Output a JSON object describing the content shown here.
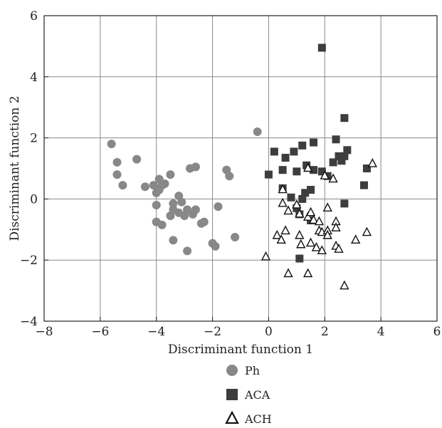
{
  "chart_data": {
    "type": "scatter",
    "xlabel": "Discriminant function 1",
    "ylabel": "Discriminant function 2",
    "xlim": [
      -8,
      6
    ],
    "ylim": [
      -4,
      6
    ],
    "xticks": [
      -8,
      -6,
      -4,
      -2,
      0,
      2,
      4,
      6
    ],
    "yticks": [
      -4,
      -2,
      0,
      2,
      4,
      6
    ],
    "xtick_labels": [
      "−8",
      "−6",
      "−4",
      "−2",
      "0",
      "2",
      "4",
      "6"
    ],
    "ytick_labels": [
      "−4",
      "−2",
      "0",
      "2",
      "4",
      "6"
    ],
    "grid": true,
    "legend_position": "bottom",
    "series": [
      {
        "name": "Ph",
        "marker": "circle",
        "color": "#888888",
        "points": [
          [
            -5.6,
            1.8
          ],
          [
            -5.4,
            1.2
          ],
          [
            -5.4,
            0.8
          ],
          [
            -5.2,
            0.45
          ],
          [
            -4.7,
            1.3
          ],
          [
            -4.4,
            0.4
          ],
          [
            -4.1,
            0.45
          ],
          [
            -4.0,
            0.2
          ],
          [
            -3.9,
            0.65
          ],
          [
            -3.9,
            0.3
          ],
          [
            -3.8,
            0.45
          ],
          [
            -3.7,
            0.5
          ],
          [
            -3.5,
            0.8
          ],
          [
            -4.0,
            -0.2
          ],
          [
            -4.0,
            -0.75
          ],
          [
            -3.8,
            -0.85
          ],
          [
            -3.5,
            -0.55
          ],
          [
            -3.4,
            -0.35
          ],
          [
            -3.4,
            -0.15
          ],
          [
            -3.2,
            0.1
          ],
          [
            -3.1,
            -0.1
          ],
          [
            -3.2,
            -0.45
          ],
          [
            -3.0,
            -0.55
          ],
          [
            -2.9,
            -0.35
          ],
          [
            -2.8,
            1.0
          ],
          [
            -2.6,
            1.05
          ],
          [
            -2.7,
            -0.5
          ],
          [
            -2.6,
            -0.35
          ],
          [
            -2.4,
            -0.8
          ],
          [
            -2.3,
            -0.75
          ],
          [
            -1.8,
            -0.25
          ],
          [
            -2.0,
            -1.45
          ],
          [
            -1.9,
            -1.55
          ],
          [
            -1.5,
            0.95
          ],
          [
            -1.4,
            0.75
          ],
          [
            -1.2,
            -1.25
          ],
          [
            -3.4,
            -1.35
          ],
          [
            -2.9,
            -1.7
          ],
          [
            -0.4,
            2.2
          ]
        ]
      },
      {
        "name": "ACA",
        "marker": "square",
        "color": "#3d3d3d",
        "points": [
          [
            1.9,
            4.95
          ],
          [
            2.7,
            2.65
          ],
          [
            2.4,
            1.95
          ],
          [
            1.6,
            1.85
          ],
          [
            2.8,
            1.6
          ],
          [
            0.2,
            1.55
          ],
          [
            0.9,
            1.55
          ],
          [
            1.2,
            1.75
          ],
          [
            2.5,
            1.4
          ],
          [
            2.7,
            1.4
          ],
          [
            0.6,
            1.35
          ],
          [
            2.3,
            1.2
          ],
          [
            2.6,
            1.25
          ],
          [
            1.35,
            1.1
          ],
          [
            1.6,
            0.95
          ],
          [
            3.5,
            1.0
          ],
          [
            0.0,
            0.8
          ],
          [
            0.5,
            0.95
          ],
          [
            1.0,
            0.9
          ],
          [
            1.9,
            0.9
          ],
          [
            2.1,
            0.75
          ],
          [
            0.5,
            0.35
          ],
          [
            1.5,
            0.3
          ],
          [
            1.3,
            0.2
          ],
          [
            1.2,
            0.0
          ],
          [
            3.4,
            0.45
          ],
          [
            2.7,
            -0.15
          ],
          [
            0.8,
            0.05
          ],
          [
            1.0,
            -0.3
          ],
          [
            1.1,
            -0.5
          ],
          [
            1.5,
            -0.7
          ],
          [
            1.1,
            -1.95
          ]
        ]
      },
      {
        "name": "ACH",
        "marker": "triangle",
        "color": "#111111",
        "points": [
          [
            3.7,
            1.15
          ],
          [
            2.0,
            0.75
          ],
          [
            2.3,
            0.65
          ],
          [
            1.4,
            1.0
          ],
          [
            0.5,
            0.3
          ],
          [
            0.5,
            -0.15
          ],
          [
            0.7,
            -0.4
          ],
          [
            1.0,
            -0.2
          ],
          [
            1.1,
            -0.5
          ],
          [
            1.4,
            -0.6
          ],
          [
            1.5,
            -0.45
          ],
          [
            1.6,
            -0.7
          ],
          [
            1.8,
            -0.75
          ],
          [
            2.1,
            -0.3
          ],
          [
            2.4,
            -0.75
          ],
          [
            2.4,
            -0.95
          ],
          [
            1.8,
            -1.05
          ],
          [
            1.9,
            -1.1
          ],
          [
            2.1,
            -1.05
          ],
          [
            2.1,
            -1.2
          ],
          [
            0.6,
            -1.05
          ],
          [
            0.3,
            -1.2
          ],
          [
            0.45,
            -1.35
          ],
          [
            1.1,
            -1.2
          ],
          [
            1.15,
            -1.5
          ],
          [
            1.5,
            -1.45
          ],
          [
            1.7,
            -1.6
          ],
          [
            1.9,
            -1.7
          ],
          [
            2.4,
            -1.55
          ],
          [
            2.5,
            -1.65
          ],
          [
            3.1,
            -1.35
          ],
          [
            3.5,
            -1.1
          ],
          [
            -0.1,
            -1.9
          ],
          [
            0.7,
            -2.45
          ],
          [
            1.4,
            -2.45
          ],
          [
            2.7,
            -2.85
          ]
        ]
      }
    ]
  }
}
